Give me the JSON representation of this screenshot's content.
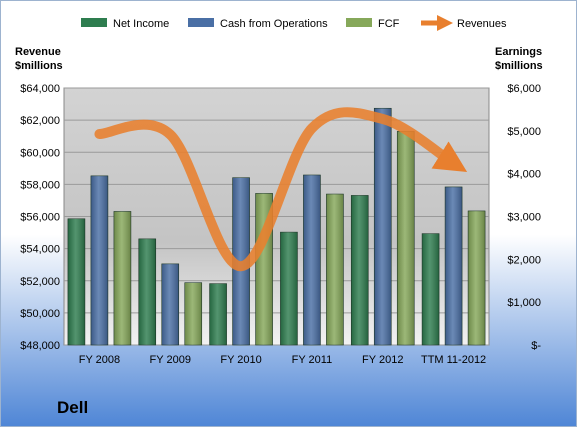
{
  "company_label": "Dell",
  "left_axis_title": [
    "Revenue",
    "$millions"
  ],
  "right_axis_title": [
    "Earnings",
    "$millions"
  ],
  "colors": {
    "net_income": "#2e7d4f",
    "cash_from_operations": "#4a6fa5",
    "fcf": "#86a85a",
    "revenues": "#e87f2e",
    "background_top": "#ffffff",
    "background_bottom": "#4f86d6",
    "plot_top": "#d3d3d3",
    "plot_bottom": "#f2f2f2"
  },
  "chart_data": {
    "type": "bar",
    "categories": [
      "FY 2008",
      "FY 2009",
      "FY 2010",
      "FY 2011",
      "FY 2012",
      "TTM 11-2012"
    ],
    "series": [
      {
        "name": "Net Income",
        "axis": "right",
        "values": [
          2947,
          2478,
          1433,
          2635,
          3492,
          2600
        ]
      },
      {
        "name": "Cash from Operations",
        "axis": "right",
        "values": [
          3949,
          1894,
          3906,
          3969,
          5527,
          3690
        ]
      },
      {
        "name": "FCF",
        "axis": "right",
        "values": [
          3118,
          1455,
          3539,
          3524,
          4987,
          3130
        ]
      }
    ],
    "line_series": {
      "name": "Revenues",
      "axis": "left",
      "type": "line",
      "smooth": true,
      "arrow_end": true,
      "values": [
        61133,
        61101,
        52902,
        61494,
        62071,
        59300
      ]
    },
    "left_axis": {
      "min": 48000,
      "max": 64000,
      "step": 2000,
      "tick_labels": [
        "$48,000",
        "$50,000",
        "$52,000",
        "$54,000",
        "$56,000",
        "$58,000",
        "$60,000",
        "$62,000",
        "$64,000"
      ]
    },
    "right_axis": {
      "min": 0,
      "max": 6000,
      "step": 1000,
      "tick_labels": [
        "$-",
        "$1,000",
        "$2,000",
        "$3,000",
        "$4,000",
        "$5,000",
        "$6,000"
      ]
    },
    "legend": {
      "position": "top",
      "entries": [
        "Net Income",
        "Cash from Operations",
        "FCF",
        "Revenues"
      ]
    },
    "grid": true
  }
}
